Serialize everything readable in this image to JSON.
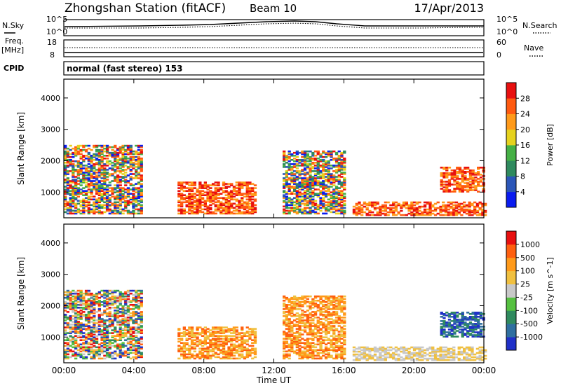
{
  "header": {
    "station": "Zhongshan Station (fitACF)",
    "beam": "Beam 10",
    "date": "17/Apr/2013"
  },
  "nsky_panel": {
    "left_label": "N.Sky",
    "left_ticks": [
      "10^5",
      "10^0"
    ],
    "right_ticks": [
      "10^5",
      "10^0"
    ],
    "right_label": "N.Search"
  },
  "freq_panel": {
    "left_label_line1": "Freq.",
    "left_label_line2": "[MHz]",
    "left_ticks": [
      "18",
      "8"
    ],
    "right_ticks": [
      "60",
      "0"
    ],
    "right_label": "Nave"
  },
  "cpid": {
    "label": "CPID",
    "text": "normal (fast stereo) 153"
  },
  "chart_data": [
    {
      "type": "heatmap",
      "title": "",
      "xlabel": "Time UT",
      "ylabel": "Slant Range [km]",
      "x_ticks": [
        "00:00",
        "04:00",
        "08:00",
        "12:00",
        "16:00",
        "20:00",
        "00:00"
      ],
      "y_ticks": [
        "1000",
        "2000",
        "3000",
        "4000"
      ],
      "ylim": [
        180,
        4600
      ],
      "colorbar": {
        "label": "Power [dB]",
        "ticks": [
          "4",
          "8",
          "12",
          "16",
          "20",
          "24",
          "28"
        ],
        "colors": [
          "#0a1cf0",
          "#2b56b8",
          "#2f8a5e",
          "#45b045",
          "#e6d21e",
          "#ff9a1a",
          "#ff5a10",
          "#e81010"
        ]
      },
      "echo_regions_hours_km": [
        {
          "t0": 0.0,
          "t1": 4.5,
          "r0": 300,
          "r1": 2500,
          "level": "mixed"
        },
        {
          "t0": 6.5,
          "t1": 11.0,
          "r0": 300,
          "r1": 1300,
          "level": "high"
        },
        {
          "t0": 12.5,
          "t1": 16.0,
          "r0": 300,
          "r1": 2300,
          "level": "mixed"
        },
        {
          "t0": 16.5,
          "t1": 24.0,
          "r0": 250,
          "r1": 700,
          "level": "high"
        },
        {
          "t0": 21.5,
          "t1": 24.0,
          "r0": 1000,
          "r1": 1800,
          "level": "high"
        }
      ]
    },
    {
      "type": "heatmap",
      "title": "",
      "xlabel": "Time UT",
      "ylabel": "Slant Range [km]",
      "x_ticks": [
        "00:00",
        "04:00",
        "08:00",
        "12:00",
        "16:00",
        "20:00",
        "00:00"
      ],
      "y_ticks": [
        "1000",
        "2000",
        "3000",
        "4000"
      ],
      "ylim": [
        180,
        4600
      ],
      "colorbar": {
        "label": "Velocity [m s^-1]",
        "ticks": [
          "1000",
          "500",
          "100",
          "25",
          "-25",
          "-100",
          "-500",
          "-1000"
        ],
        "colors": [
          "#2030c8",
          "#2f6fa0",
          "#2f8a5e",
          "#55c040",
          "#c8c8c8",
          "#f0c040",
          "#ff9a1a",
          "#ff6010",
          "#e81010"
        ]
      },
      "echo_regions_hours_km": [
        {
          "t0": 0.0,
          "t1": 4.5,
          "r0": 300,
          "r1": 2500,
          "level": "mixed"
        },
        {
          "t0": 6.5,
          "t1": 11.0,
          "r0": 300,
          "r1": 1300,
          "level": "negative"
        },
        {
          "t0": 12.5,
          "t1": 16.0,
          "r0": 300,
          "r1": 2300,
          "level": "negative"
        },
        {
          "t0": 16.5,
          "t1": 24.0,
          "r0": 250,
          "r1": 700,
          "level": "low"
        },
        {
          "t0": 21.5,
          "t1": 24.0,
          "r0": 1000,
          "r1": 1800,
          "level": "positive"
        }
      ]
    }
  ]
}
